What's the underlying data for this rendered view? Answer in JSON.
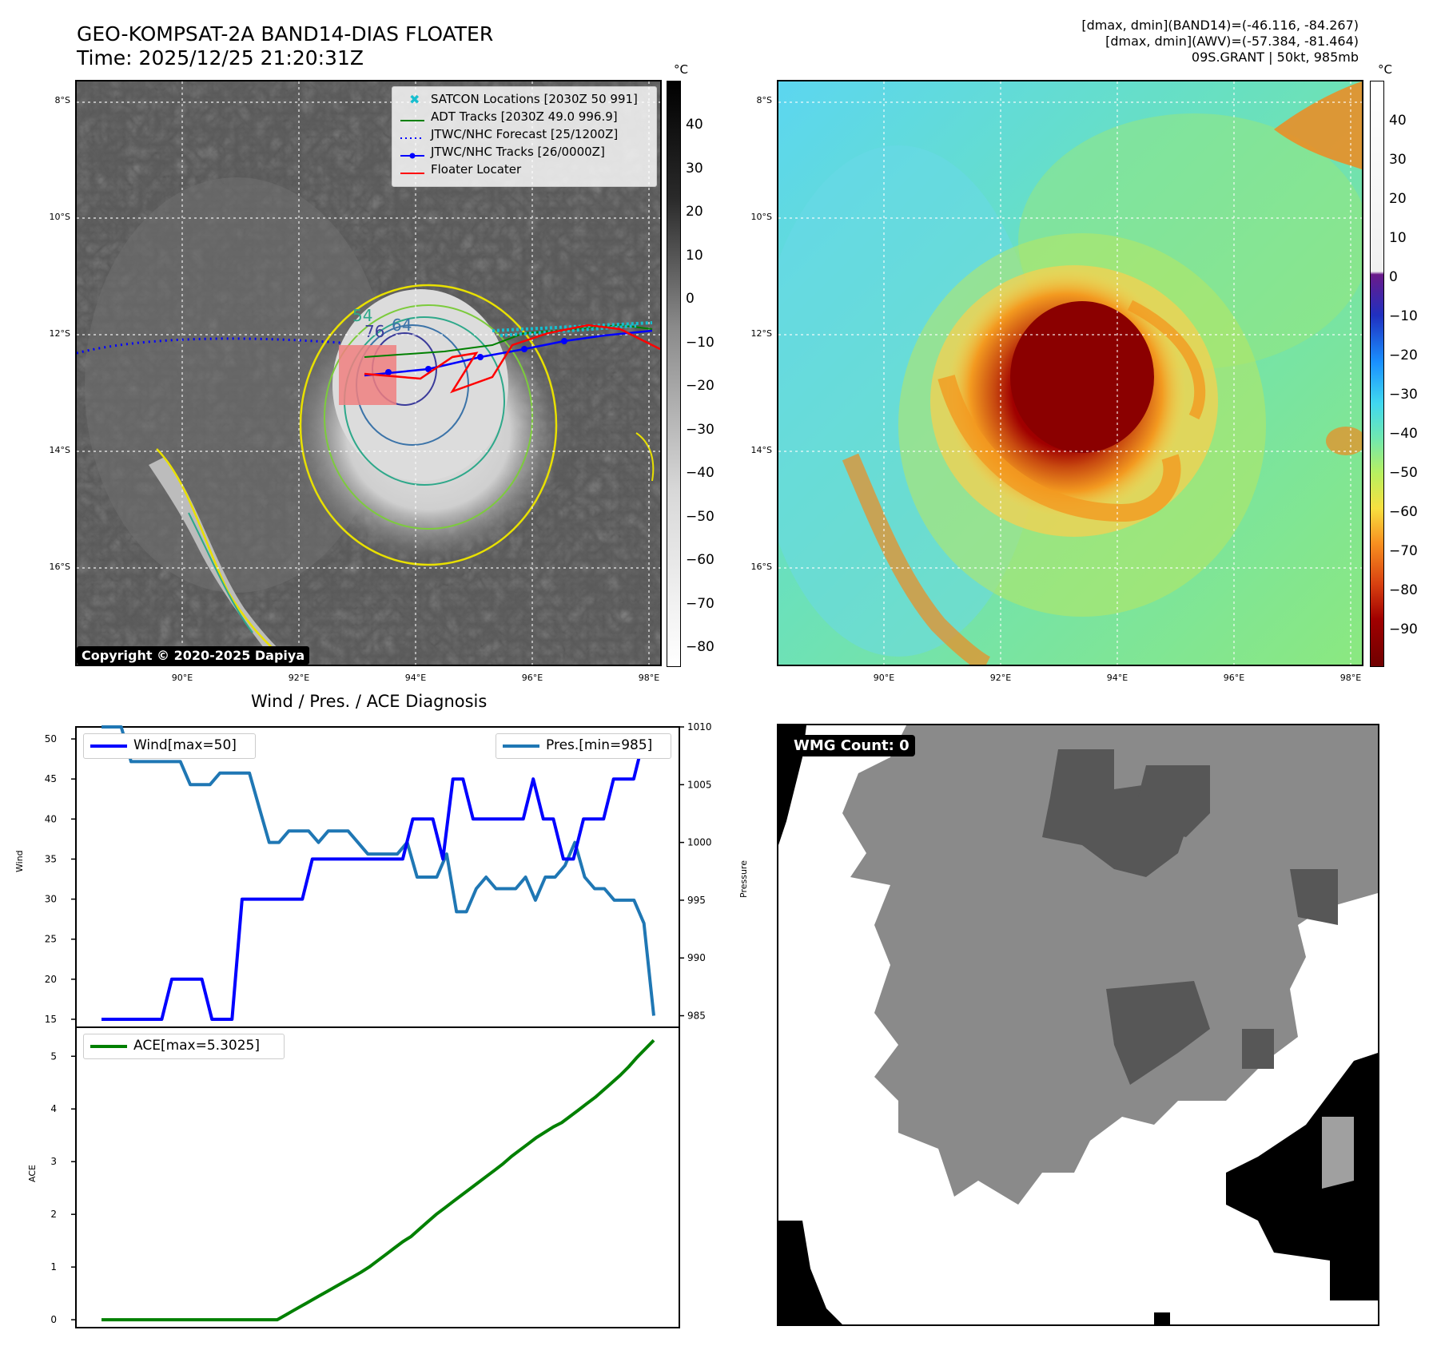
{
  "header": {
    "title_line1": "GEO-KOMPSAT-2A BAND14-DIAS FLOATER",
    "title_line2": "Time: 2025/12/25 21:20:31Z",
    "info_line1": "[dmax, dmin](BAND14)=(-46.116, -84.267)",
    "info_line2": "[dmax, dmin](AWV)=(-57.384, -81.464)",
    "info_line3": "09S.GRANT | 50kt, 985mb"
  },
  "map": {
    "lat_labels": [
      "8°S",
      "10°S",
      "12°S",
      "14°S",
      "16°S"
    ],
    "lon_labels": [
      "90°E",
      "92°E",
      "94°E",
      "96°E",
      "98°E"
    ],
    "copyright": "Copyright © 2020-2025 Dapiya",
    "legend": [
      {
        "label": "SATCON Locations [2030Z 50 991]",
        "color": "#17becf",
        "style": "x"
      },
      {
        "label": "ADT Tracks [2030Z 49.0 996.9]",
        "color": "#008000",
        "style": "line"
      },
      {
        "label": "JTWC/NHC Forecast [25/1200Z]",
        "color": "#0000ff",
        "style": "dotted"
      },
      {
        "label": "JTWC/NHC Tracks [26/0000Z]",
        "color": "#0000ff",
        "style": "line-dot"
      },
      {
        "label": "Floater Locater",
        "color": "#ff0000",
        "style": "line"
      }
    ],
    "contour_labels": [
      "54",
      "64",
      "76"
    ],
    "cbar_gray": {
      "unit": "°C",
      "ticks": [
        "40",
        "30",
        "20",
        "10",
        "0",
        "−10",
        "−20",
        "−30",
        "−40",
        "−50",
        "−60",
        "−70",
        "−80"
      ]
    },
    "cbar_color": {
      "unit": "°C",
      "ticks": [
        "40",
        "30",
        "20",
        "10",
        "0",
        "−10",
        "−20",
        "−30",
        "−40",
        "−50",
        "−60",
        "−70",
        "−80",
        "−90"
      ]
    }
  },
  "diagnosis": {
    "title": "Wind / Pres. / ACE Diagnosis",
    "wind_legend": "Wind[max=50]",
    "pres_legend": "Pres.[min=985]",
    "ace_legend": "ACE[max=5.3025]",
    "wind_axis_label": "Wind",
    "pres_axis_label": "Pressure",
    "ace_axis_label": "ACE"
  },
  "wmg": {
    "label": "WMG Count: 0"
  },
  "chart_data": [
    {
      "type": "line",
      "title": "Wind / Pres. / ACE Diagnosis",
      "ylabel": "Wind",
      "ylim": [
        14,
        51.5
      ],
      "yticks": [
        15,
        20,
        25,
        30,
        35,
        40,
        45,
        50
      ],
      "series": [
        {
          "name": "Wind[max=50]",
          "color": "#0000ff",
          "values": [
            15,
            15,
            15,
            15,
            15,
            15,
            15,
            20,
            20,
            20,
            20,
            15,
            15,
            15,
            30,
            30,
            30,
            30,
            30,
            30,
            30,
            35,
            35,
            35,
            35,
            35,
            35,
            35,
            35,
            35,
            35,
            40,
            40,
            40,
            35,
            45,
            45,
            40,
            40,
            40,
            40,
            40,
            40,
            45,
            40,
            40,
            35,
            35,
            40,
            40,
            40,
            45,
            45,
            45,
            50,
            50
          ]
        }
      ]
    },
    {
      "type": "line",
      "ylabel": "Pressure",
      "ylim": [
        984,
        1010
      ],
      "yticks": [
        985,
        990,
        995,
        1000,
        1005,
        1010
      ],
      "series": [
        {
          "name": "Pres.[min=985]",
          "color": "#1f77b4",
          "values": [
            1010,
            1010,
            1010,
            1007,
            1007,
            1007,
            1007,
            1007,
            1007,
            1005,
            1005,
            1005,
            1006,
            1006,
            1006,
            1006,
            1003,
            1000,
            1000,
            1001,
            1001,
            1001,
            1000,
            1001,
            1001,
            1001,
            1000,
            999,
            999,
            999,
            999,
            1000,
            997,
            997,
            997,
            999,
            994,
            994,
            996,
            997,
            996,
            996,
            996,
            997,
            995,
            997,
            997,
            998,
            1000,
            997,
            996,
            996,
            995,
            995,
            995,
            993,
            985
          ]
        }
      ]
    },
    {
      "type": "line",
      "ylabel": "ACE",
      "ylim": [
        -0.15,
        5.55
      ],
      "yticks": [
        0,
        1,
        2,
        3,
        4,
        5
      ],
      "series": [
        {
          "name": "ACE[max=5.3025]",
          "color": "#008000",
          "values": [
            0,
            0,
            0,
            0,
            0,
            0,
            0,
            0,
            0,
            0,
            0,
            0,
            0,
            0,
            0,
            0,
            0,
            0,
            0,
            0,
            0,
            0,
            0.09,
            0.18,
            0.27,
            0.36,
            0.45,
            0.54,
            0.63,
            0.72,
            0.81,
            0.9,
            1.0,
            1.12,
            1.24,
            1.36,
            1.48,
            1.58,
            1.72,
            1.86,
            2.0,
            2.12,
            2.24,
            2.36,
            2.48,
            2.6,
            2.72,
            2.84,
            2.96,
            3.1,
            3.22,
            3.34,
            3.46,
            3.56,
            3.66,
            3.74,
            3.86,
            3.98,
            4.1,
            4.22,
            4.36,
            4.5,
            4.64,
            4.8,
            4.98,
            5.14,
            5.3025
          ]
        }
      ]
    }
  ]
}
